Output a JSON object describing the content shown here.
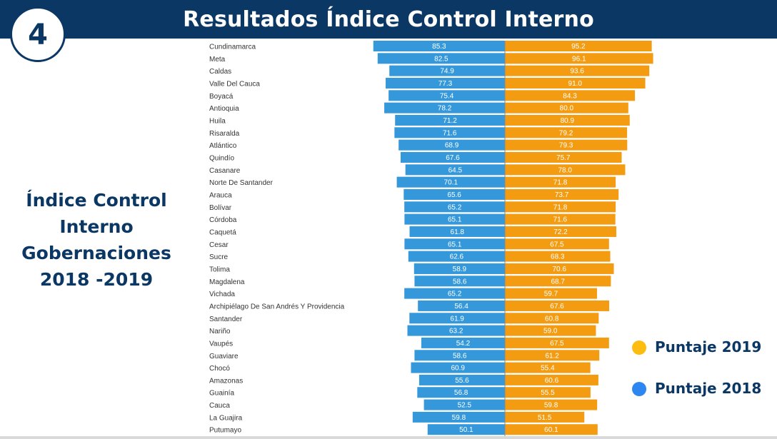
{
  "header": {
    "title": "Resultados Índice Control Interno",
    "badge_number": "4"
  },
  "side_title": {
    "lines": [
      "Índice Control",
      "Interno",
      "Gobernaciones",
      "2018 -2019"
    ]
  },
  "legend": {
    "items": [
      {
        "label": "Puntaje 2019",
        "color": "#fdbd10"
      },
      {
        "label": "Puntaje 2018",
        "color": "#2e86f0"
      }
    ]
  },
  "colors": {
    "header_bg": "#0a3764",
    "bar_2018": "#3498db",
    "bar_2019": "#f39c12"
  },
  "chart_data": {
    "type": "bar",
    "orientation": "horizontal-diverging",
    "title": "Resultados Índice Control Interno",
    "xlabel": "",
    "ylabel": "",
    "grid": false,
    "legend_position": "right",
    "categories": [
      "Cundinamarca",
      "Meta",
      "Caldas",
      "Valle Del Cauca",
      "Boyacá",
      "Antioquia",
      "Huila",
      "Risaralda",
      "Atlántico",
      "Quindío",
      "Casanare",
      "Norte De Santander",
      "Arauca",
      "Bolívar",
      "Córdoba",
      "Caquetá",
      "Cesar",
      "Sucre",
      "Tolima",
      "Magdalena",
      "Vichada",
      "Archipiélago De San Andrés Y Providencia",
      "Santander",
      "Nariño",
      "Vaupés",
      "Guaviare",
      "Chocó",
      "Amazonas",
      "Guainía",
      "Cauca",
      "La Guajira",
      "Putumayo"
    ],
    "series": [
      {
        "name": "Puntaje 2018",
        "side": "left",
        "values": [
          85.3,
          82.5,
          74.9,
          77.3,
          75.4,
          78.2,
          71.2,
          71.6,
          68.9,
          67.6,
          64.5,
          70.1,
          65.6,
          65.2,
          65.1,
          61.8,
          65.1,
          62.6,
          58.9,
          58.6,
          65.2,
          56.4,
          61.9,
          63.2,
          54.2,
          58.6,
          60.9,
          55.6,
          56.8,
          52.5,
          59.8,
          50.1
        ]
      },
      {
        "name": "Puntaje 2019",
        "side": "right",
        "values": [
          95.2,
          96.1,
          93.6,
          91.0,
          84.3,
          80.0,
          80.9,
          79.2,
          79.3,
          75.7,
          78.0,
          71.8,
          73.7,
          71.8,
          71.6,
          72.2,
          67.5,
          68.3,
          70.6,
          68.7,
          59.7,
          67.6,
          60.8,
          59.0,
          67.5,
          61.2,
          55.4,
          60.6,
          55.5,
          59.8,
          51.5,
          60.1
        ]
      }
    ],
    "xlim": [
      0,
      100
    ]
  }
}
